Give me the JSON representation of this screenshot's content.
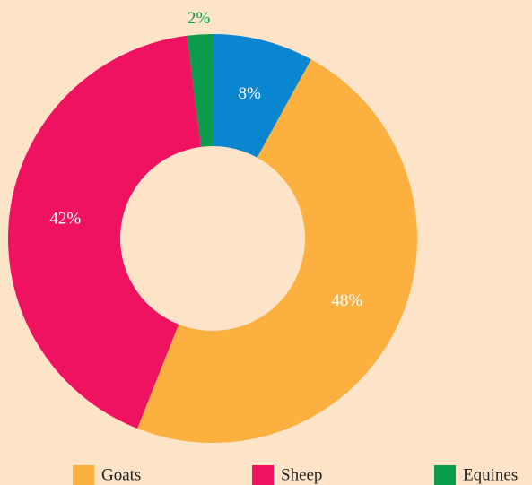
{
  "chart_data": {
    "type": "pie",
    "categories": [
      null,
      "Goats",
      "Sheep",
      "Equines"
    ],
    "values": [
      8,
      48,
      42,
      2
    ],
    "value_labels": [
      "8%",
      "48%",
      "42%",
      "2%"
    ],
    "colors": [
      "#0a86d0",
      "#fbb040",
      "#ee1260",
      "#0a9b4c"
    ],
    "donut": true,
    "legend": "bottom"
  }
}
